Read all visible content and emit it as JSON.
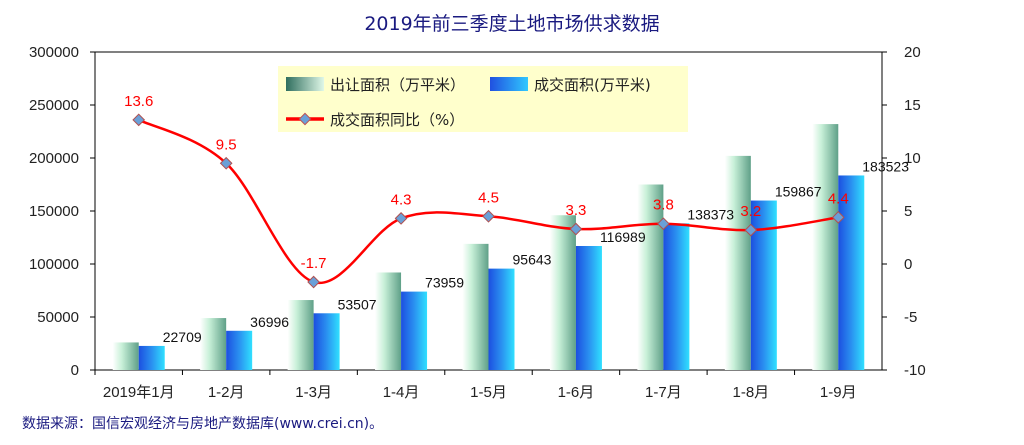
{
  "chart_data": {
    "type": "bar",
    "title": "2019年前三季度土地市场供求数据",
    "categories": [
      "2019年1月",
      "1-2月",
      "1-3月",
      "1-4月",
      "1-5月",
      "1-6月",
      "1-7月",
      "1-8月",
      "1-9月"
    ],
    "series": [
      {
        "name": "出让面积（万平米）",
        "type": "bar",
        "axis": "left",
        "values": [
          26000,
          49000,
          66000,
          92000,
          119000,
          146000,
          175000,
          202000,
          232000
        ]
      },
      {
        "name": "成交面积(万平米)",
        "type": "bar",
        "axis": "left",
        "values": [
          22709,
          36996,
          53507,
          73959,
          95643,
          116989,
          138373,
          159867,
          183523
        ],
        "labels": [
          "22709",
          "36996",
          "53507",
          "73959",
          "95643",
          "116989",
          "138373",
          "159867",
          "183523"
        ]
      },
      {
        "name": "成交面积同比（%）",
        "type": "line",
        "axis": "right",
        "values": [
          13.6,
          9.5,
          -1.7,
          4.3,
          4.5,
          3.3,
          3.8,
          3.2,
          4.4
        ],
        "labels": [
          "13.6",
          "9.5",
          "-1.7",
          "4.3",
          "4.5",
          "3.3",
          "3.8",
          "3.2",
          "4.4"
        ]
      }
    ],
    "ylim": [
      0,
      300000
    ],
    "yticks": [
      "0",
      "50000",
      "100000",
      "150000",
      "200000",
      "250000",
      "300000"
    ],
    "y2lim": [
      -10,
      20
    ],
    "y2ticks": [
      "-10",
      "-5",
      "0",
      "5",
      "10",
      "15",
      "20"
    ],
    "legend": "top-center",
    "colors": {
      "line": "#ff0000",
      "label": "#ff0000",
      "legend_bg": "#ffffcc",
      "title": "#1a1a80",
      "source": "#1a1a80"
    }
  },
  "source": "数据来源：国信宏观经济与房地产数据库(www.crei.cn)。"
}
